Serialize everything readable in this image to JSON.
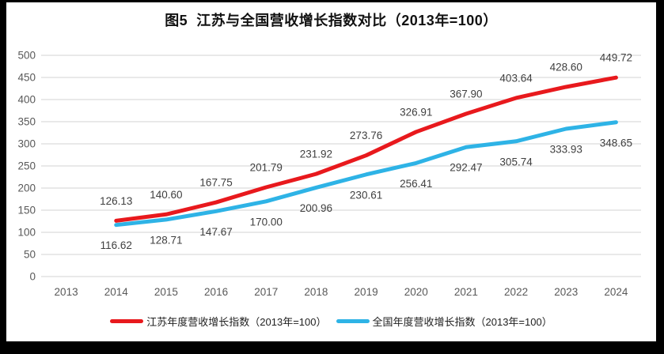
{
  "title": "图5  江苏与全国营收增长指数对比（2013年=100）",
  "colors": {
    "frame": "#000000",
    "chart_background": "#ffffff",
    "gridline": "#e2e2e2",
    "tick_text": "#595959",
    "data_label_text": "#3f3f3f",
    "title_text": "#111111",
    "jiangsu_line": "#e8191d",
    "national_line": "#2eb3e6"
  },
  "chart_data": {
    "type": "line",
    "title": "图5  江苏与全国营收增长指数对比（2013年=100）",
    "categories": [
      "2013",
      "2014",
      "2015",
      "2016",
      "2017",
      "2018",
      "2019",
      "2020",
      "2021",
      "2022",
      "2023",
      "2024"
    ],
    "series": [
      {
        "name": "江苏年度营收增长指数（2013年=100）",
        "color": "#e8191d",
        "label_side": "above",
        "values": [
          null,
          126.13,
          140.6,
          167.75,
          201.79,
          231.92,
          273.76,
          326.91,
          367.9,
          403.64,
          428.6,
          449.72
        ]
      },
      {
        "name": "全国年度营收增长指数（2013年=100）",
        "color": "#2eb3e6",
        "label_side": "below",
        "values": [
          null,
          116.62,
          128.71,
          147.67,
          170.0,
          200.96,
          230.61,
          256.41,
          292.47,
          305.74,
          333.93,
          348.65
        ]
      }
    ],
    "xlabel": "",
    "ylabel": "",
    "ylim": [
      0,
      500
    ],
    "y_tick_step": 50,
    "grid": true,
    "legend_position": "bottom",
    "data_label_decimals": 2
  }
}
